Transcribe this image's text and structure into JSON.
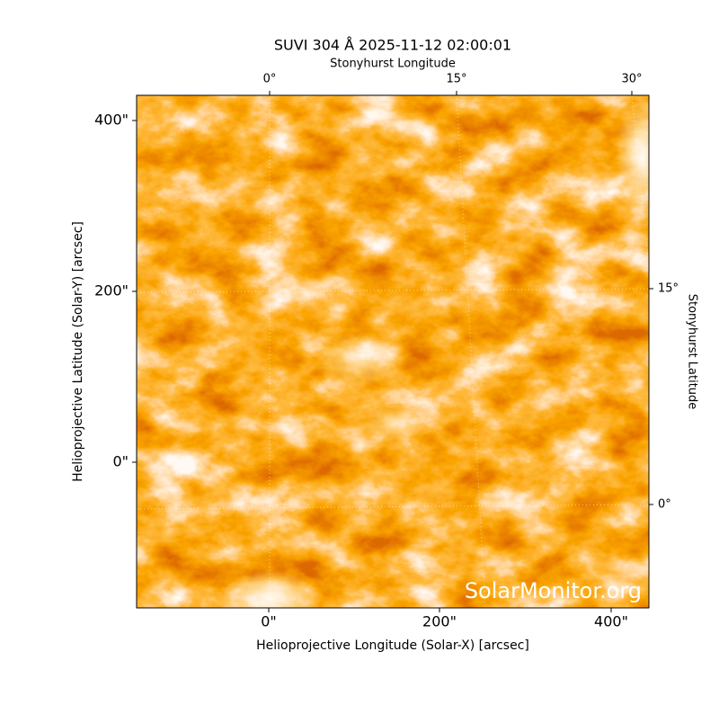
{
  "plot": {
    "title": "SUVI 304 Å 2025-11-12 02:00:01",
    "top_axis_label": "Stonyhurst Longitude",
    "right_axis_label": "Stonyhurst Latitude",
    "x_axis_label": "Helioprojective Longitude (Solar-X) [arcsec]",
    "y_axis_label": "Helioprojective Latitude (Solar-Y) [arcsec]",
    "x_tick_labels": [
      "0\"",
      "200\"",
      "400\""
    ],
    "y_tick_labels": [
      "400\"",
      "200\"",
      "0\""
    ],
    "top_tick_labels": [
      "0°",
      "15°",
      "30°"
    ],
    "right_tick_labels": [
      "15°",
      "0°"
    ],
    "watermark": "SolarMonitor.org"
  }
}
